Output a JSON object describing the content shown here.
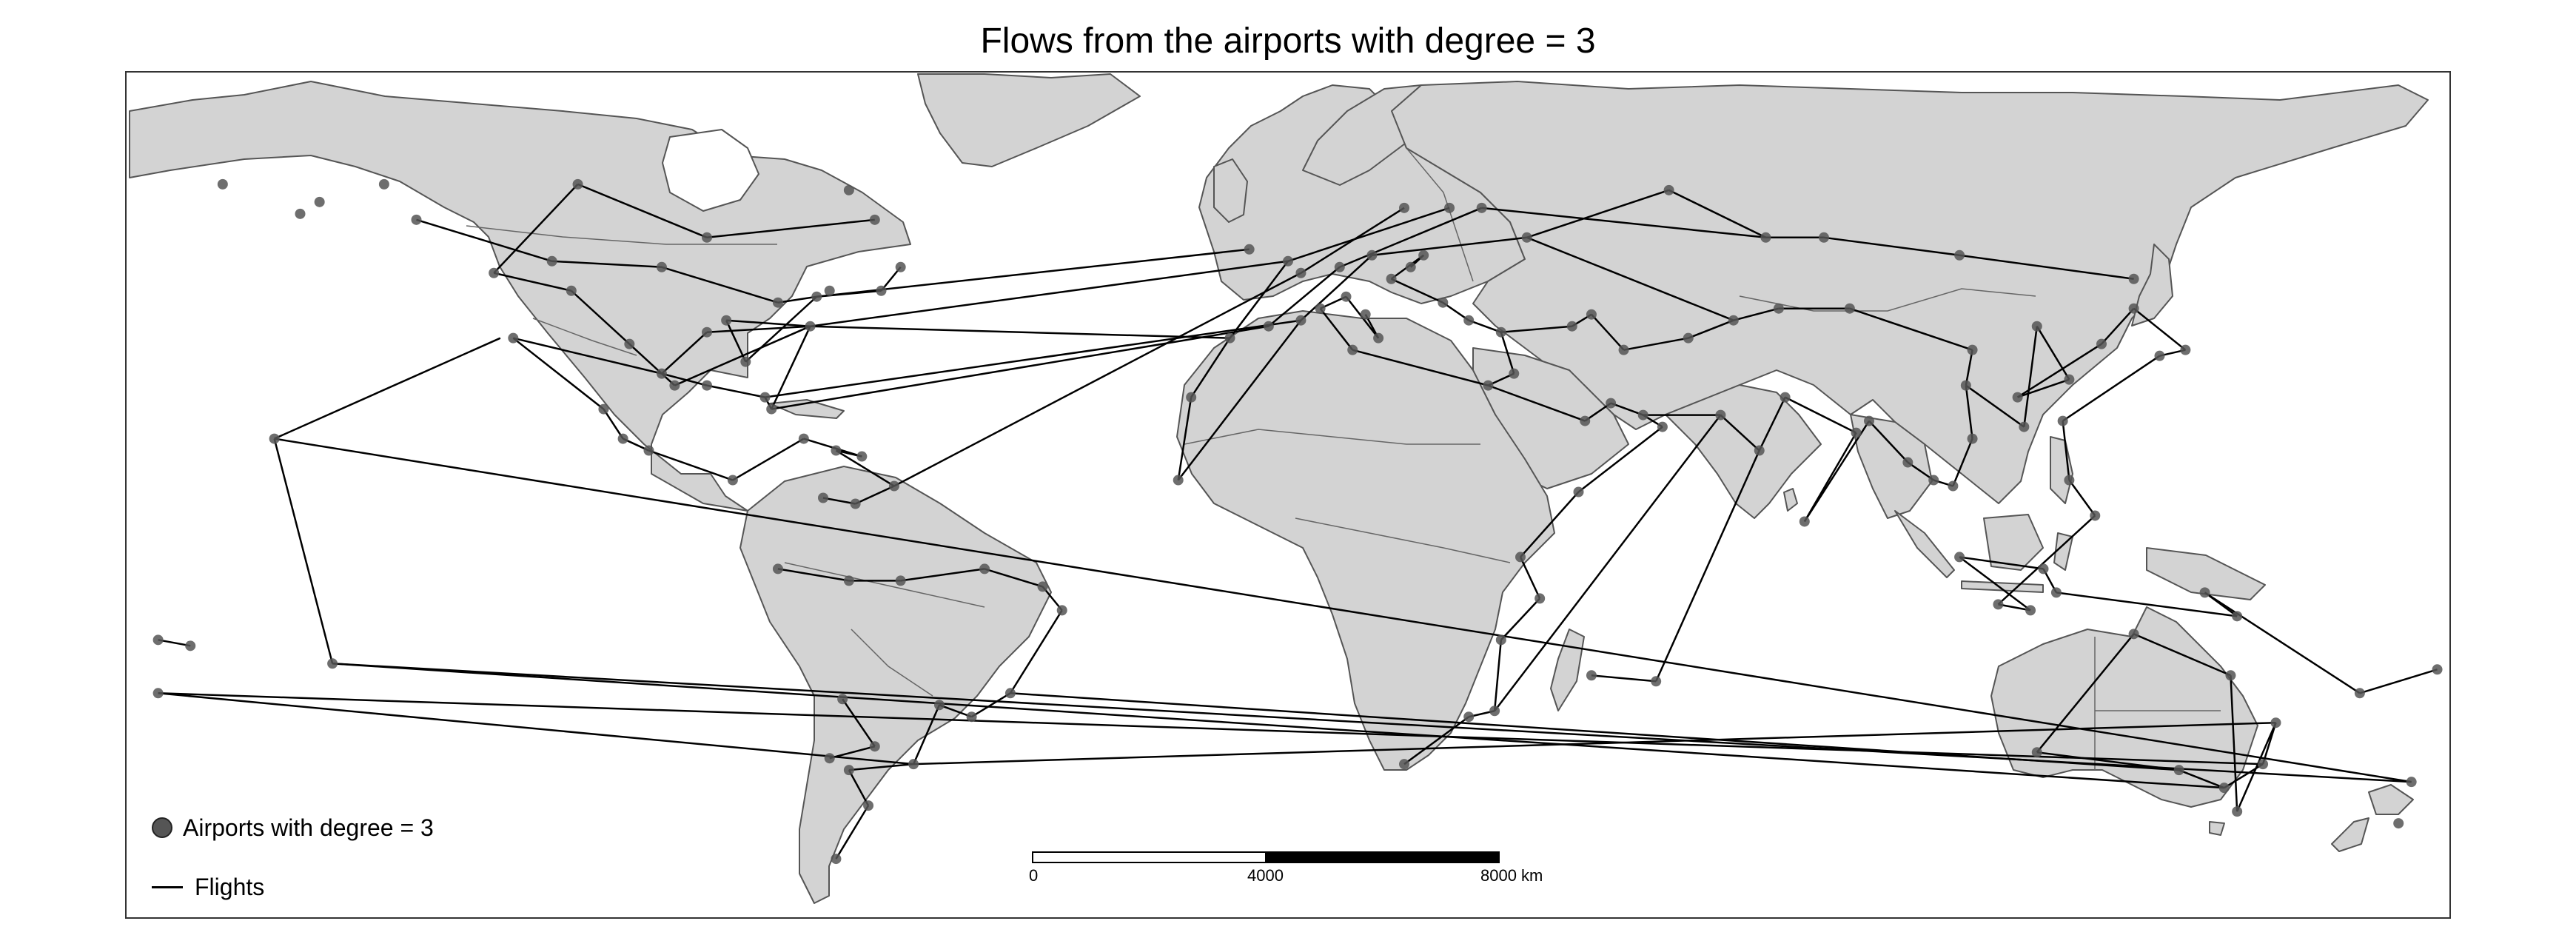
{
  "title": "Flows from the airports with degree = 3",
  "legend": {
    "airports_label": "Airports with degree = 3",
    "flights_label": "Flights"
  },
  "scale_bar": {
    "ticks": [
      "0",
      "4000",
      "8000 km"
    ]
  },
  "colors": {
    "land": "#d3d3d3",
    "border": "#555555",
    "ocean": "#ffffff",
    "airport": "#555555",
    "flight": "#000000"
  },
  "map_data": {
    "airports": [
      [
        -153,
        59
      ],
      [
        -150,
        61
      ],
      [
        -140,
        64
      ],
      [
        -165,
        64
      ],
      [
        -135,
        58
      ],
      [
        -123,
        49
      ],
      [
        -114,
        51
      ],
      [
        -97,
        50
      ],
      [
        -79,
        44
      ],
      [
        -73,
        45
      ],
      [
        -71,
        46
      ],
      [
        -63,
        46
      ],
      [
        -60,
        50
      ],
      [
        -64,
        58
      ],
      [
        -68,
        63
      ],
      [
        -90,
        55
      ],
      [
        -110,
        64
      ],
      [
        -120,
        38
      ],
      [
        -111,
        46
      ],
      [
        -102,
        37
      ],
      [
        -97,
        32
      ],
      [
        -95,
        30
      ],
      [
        -90,
        30
      ],
      [
        -81,
        28
      ],
      [
        -80,
        26
      ],
      [
        -84,
        34
      ],
      [
        -87,
        41
      ],
      [
        -74,
        40
      ],
      [
        -90,
        39
      ],
      [
        -99,
        19
      ],
      [
        -103,
        21
      ],
      [
        -106,
        26
      ],
      [
        -86,
        14
      ],
      [
        -75,
        21
      ],
      [
        -66,
        18
      ],
      [
        -70,
        19
      ],
      [
        -61,
        13
      ],
      [
        -72,
        11
      ],
      [
        -67,
        10
      ],
      [
        -79,
        -1
      ],
      [
        -47,
        -1
      ],
      [
        -38,
        -4
      ],
      [
        -35,
        -8
      ],
      [
        -43,
        -22
      ],
      [
        -49,
        -26
      ],
      [
        -54,
        -24
      ],
      [
        -68,
        -3
      ],
      [
        -60,
        -3
      ],
      [
        -58,
        -34
      ],
      [
        -68,
        -35
      ],
      [
        -65,
        -41
      ],
      [
        -70,
        -50
      ],
      [
        -71,
        -33
      ],
      [
        -64,
        -31
      ],
      [
        -69,
        -23
      ],
      [
        -157,
        21
      ],
      [
        -175,
        -13
      ],
      [
        -148,
        -17
      ],
      [
        -17,
        14
      ],
      [
        -15,
        28
      ],
      [
        -9,
        38
      ],
      [
        -3,
        40
      ],
      [
        2,
        41
      ],
      [
        2,
        49
      ],
      [
        0,
        51
      ],
      [
        -6,
        53
      ],
      [
        8,
        50
      ],
      [
        13,
        52
      ],
      [
        18,
        60
      ],
      [
        25,
        60
      ],
      [
        30,
        60
      ],
      [
        37,
        55
      ],
      [
        19,
        50
      ],
      [
        21,
        52
      ],
      [
        16,
        48
      ],
      [
        24,
        44
      ],
      [
        28,
        41
      ],
      [
        33,
        39
      ],
      [
        35,
        32
      ],
      [
        31,
        30
      ],
      [
        12,
        42
      ],
      [
        14,
        38
      ],
      [
        9,
        45
      ],
      [
        5,
        43
      ],
      [
        10,
        36
      ],
      [
        46,
        24
      ],
      [
        50,
        27
      ],
      [
        55,
        25
      ],
      [
        58,
        23
      ],
      [
        45,
        12
      ],
      [
        36,
        1
      ],
      [
        39,
        -6
      ],
      [
        33,
        -13
      ],
      [
        32,
        -25
      ],
      [
        28,
        -26
      ],
      [
        18,
        -34
      ],
      [
        47,
        -19
      ],
      [
        57,
        -20
      ],
      [
        67,
        25
      ],
      [
        73,
        19
      ],
      [
        77,
        28
      ],
      [
        88,
        22
      ],
      [
        80,
        7
      ],
      [
        90,
        24
      ],
      [
        96,
        17
      ],
      [
        100,
        14
      ],
      [
        103,
        13
      ],
      [
        106,
        21
      ],
      [
        105,
        30
      ],
      [
        114,
        23
      ],
      [
        116,
        40
      ],
      [
        121,
        31
      ],
      [
        113,
        28
      ],
      [
        126,
        37
      ],
      [
        131,
        43
      ],
      [
        139,
        36
      ],
      [
        135,
        35
      ],
      [
        120,
        24
      ],
      [
        121,
        14
      ],
      [
        125,
        8
      ],
      [
        110,
        -7
      ],
      [
        115,
        -8
      ],
      [
        104,
        1
      ],
      [
        117,
        -1
      ],
      [
        119,
        -5
      ],
      [
        147,
        -9
      ],
      [
        142,
        -5
      ],
      [
        166,
        -22
      ],
      [
        178,
        -18
      ],
      [
        106,
        36
      ],
      [
        87,
        43
      ],
      [
        76,
        43
      ],
      [
        69,
        41
      ],
      [
        62,
        38
      ],
      [
        52,
        36
      ],
      [
        47,
        42
      ],
      [
        74,
        55
      ],
      [
        83,
        55
      ],
      [
        104,
        52
      ],
      [
        131,
        48
      ],
      [
        153,
        -27
      ],
      [
        151,
        -34
      ],
      [
        145,
        -38
      ],
      [
        138,
        -35
      ],
      [
        116,
        -32
      ],
      [
        131,
        -12
      ],
      [
        146,
        -19
      ],
      [
        147,
        -42
      ],
      [
        174,
        -37
      ],
      [
        172,
        -44
      ],
      [
        -175,
        -22
      ],
      [
        -170,
        -14
      ],
      [
        44,
        40
      ],
      [
        59,
        63
      ]
    ],
    "flights": [
      [
        -135,
        58,
        -114,
        51
      ],
      [
        -123,
        49,
        -111,
        46
      ],
      [
        -114,
        51,
        -97,
        50
      ],
      [
        -97,
        50,
        -79,
        44
      ],
      [
        -79,
        44,
        -73,
        45
      ],
      [
        -73,
        45,
        -63,
        46
      ],
      [
        -63,
        46,
        -60,
        50
      ],
      [
        -64,
        58,
        -90,
        55
      ],
      [
        -90,
        55,
        -110,
        64
      ],
      [
        -110,
        64,
        -123,
        49
      ],
      [
        -120,
        38,
        -97,
        32
      ],
      [
        -111,
        46,
        -102,
        37
      ],
      [
        -102,
        37,
        -95,
        30
      ],
      [
        -97,
        32,
        -90,
        30
      ],
      [
        -90,
        30,
        -81,
        28
      ],
      [
        -81,
        28,
        -80,
        26
      ],
      [
        -84,
        34,
        -87,
        41
      ],
      [
        -87,
        41,
        -74,
        40
      ],
      [
        -74,
        40,
        -90,
        39
      ],
      [
        -90,
        39,
        -97,
        32
      ],
      [
        -95,
        30,
        -74,
        40
      ],
      [
        -84,
        34,
        -73,
        45
      ],
      [
        -80,
        26,
        -74,
        40
      ],
      [
        -99,
        19,
        -103,
        21
      ],
      [
        -103,
        21,
        -106,
        26
      ],
      [
        -106,
        26,
        -120,
        38
      ],
      [
        -99,
        19,
        -86,
        14
      ],
      [
        -86,
        14,
        -75,
        21
      ],
      [
        -75,
        21,
        -66,
        18
      ],
      [
        -66,
        18,
        -70,
        19
      ],
      [
        -70,
        19,
        -61,
        13
      ],
      [
        -72,
        11,
        -67,
        10
      ],
      [
        -67,
        10,
        -61,
        13
      ],
      [
        -79,
        -1,
        -68,
        -3
      ],
      [
        -68,
        -3,
        -60,
        -3
      ],
      [
        -60,
        -3,
        -47,
        -1
      ],
      [
        -47,
        -1,
        -38,
        -4
      ],
      [
        -38,
        -4,
        -35,
        -8
      ],
      [
        -35,
        -8,
        -43,
        -22
      ],
      [
        -43,
        -22,
        -49,
        -26
      ],
      [
        -49,
        -26,
        -54,
        -24
      ],
      [
        -54,
        -24,
        -58,
        -34
      ],
      [
        -58,
        -34,
        -68,
        -35
      ],
      [
        -68,
        -35,
        -65,
        -41
      ],
      [
        -65,
        -41,
        -70,
        -50
      ],
      [
        -71,
        -33,
        -64,
        -31
      ],
      [
        -64,
        -31,
        -69,
        -23
      ],
      [
        -74,
        40,
        -9,
        38
      ],
      [
        -74,
        40,
        0,
        51
      ],
      [
        -73,
        45,
        -6,
        53
      ],
      [
        -80,
        26,
        -3,
        40
      ],
      [
        -81,
        28,
        2,
        41
      ],
      [
        -61,
        13,
        2,
        49
      ],
      [
        -17,
        14,
        -15,
        28
      ],
      [
        -15,
        28,
        -9,
        38
      ],
      [
        -17,
        14,
        2,
        41
      ],
      [
        -9,
        38,
        0,
        51
      ],
      [
        -3,
        40,
        8,
        50
      ],
      [
        2,
        41,
        13,
        52
      ],
      [
        2,
        49,
        18,
        60
      ],
      [
        0,
        51,
        25,
        60
      ],
      [
        8,
        50,
        30,
        60
      ],
      [
        13,
        52,
        37,
        55
      ],
      [
        19,
        50,
        21,
        52
      ],
      [
        21,
        52,
        16,
        48
      ],
      [
        16,
        48,
        24,
        44
      ],
      [
        24,
        44,
        28,
        41
      ],
      [
        28,
        41,
        33,
        39
      ],
      [
        33,
        39,
        35,
        32
      ],
      [
        35,
        32,
        31,
        30
      ],
      [
        12,
        42,
        14,
        38
      ],
      [
        14,
        38,
        9,
        45
      ],
      [
        9,
        45,
        5,
        43
      ],
      [
        5,
        43,
        10,
        36
      ],
      [
        10,
        36,
        31,
        30
      ],
      [
        31,
        30,
        46,
        24
      ],
      [
        46,
        24,
        50,
        27
      ],
      [
        50,
        27,
        55,
        25
      ],
      [
        55,
        25,
        58,
        23
      ],
      [
        58,
        23,
        45,
        12
      ],
      [
        45,
        12,
        36,
        1
      ],
      [
        36,
        1,
        39,
        -6
      ],
      [
        39,
        -6,
        33,
        -13
      ],
      [
        33,
        -13,
        32,
        -25
      ],
      [
        32,
        -25,
        28,
        -26
      ],
      [
        28,
        -26,
        18,
        -34
      ],
      [
        47,
        -19,
        57,
        -20
      ],
      [
        57,
        -20,
        73,
        19
      ],
      [
        32,
        -25,
        67,
        25
      ],
      [
        55,
        25,
        67,
        25
      ],
      [
        67,
        25,
        73,
        19
      ],
      [
        73,
        19,
        77,
        28
      ],
      [
        77,
        28,
        88,
        22
      ],
      [
        88,
        22,
        80,
        7
      ],
      [
        80,
        7,
        90,
        24
      ],
      [
        90,
        24,
        96,
        17
      ],
      [
        96,
        17,
        100,
        14
      ],
      [
        100,
        14,
        103,
        13
      ],
      [
        103,
        13,
        106,
        21
      ],
      [
        106,
        21,
        105,
        30
      ],
      [
        105,
        30,
        114,
        23
      ],
      [
        114,
        23,
        116,
        40
      ],
      [
        116,
        40,
        121,
        31
      ],
      [
        121,
        31,
        113,
        28
      ],
      [
        113,
        28,
        126,
        37
      ],
      [
        126,
        37,
        131,
        43
      ],
      [
        131,
        43,
        139,
        36
      ],
      [
        139,
        36,
        135,
        35
      ],
      [
        135,
        35,
        120,
        24
      ],
      [
        120,
        24,
        121,
        14
      ],
      [
        121,
        14,
        125,
        8
      ],
      [
        125,
        8,
        110,
        -7
      ],
      [
        110,
        -7,
        115,
        -8
      ],
      [
        115,
        -8,
        104,
        1
      ],
      [
        104,
        1,
        117,
        -1
      ],
      [
        117,
        -1,
        119,
        -5
      ],
      [
        119,
        -5,
        147,
        -9
      ],
      [
        147,
        -9,
        142,
        -5
      ],
      [
        142,
        -5,
        166,
        -22
      ],
      [
        166,
        -22,
        178,
        -18
      ],
      [
        105,
        30,
        106,
        36
      ],
      [
        106,
        36,
        87,
        43
      ],
      [
        87,
        43,
        76,
        43
      ],
      [
        76,
        43,
        69,
        41
      ],
      [
        69,
        41,
        62,
        38
      ],
      [
        62,
        38,
        52,
        36
      ],
      [
        52,
        36,
        47,
        42
      ],
      [
        47,
        42,
        44,
        40
      ],
      [
        44,
        40,
        33,
        39
      ],
      [
        74,
        55,
        83,
        55
      ],
      [
        83,
        55,
        104,
        52
      ],
      [
        104,
        52,
        131,
        48
      ],
      [
        37,
        55,
        59,
        63
      ],
      [
        59,
        63,
        74,
        55
      ],
      [
        30,
        60,
        74,
        55
      ],
      [
        37,
        55,
        69,
        41
      ],
      [
        153,
        -27,
        151,
        -34
      ],
      [
        151,
        -34,
        145,
        -38
      ],
      [
        145,
        -38,
        138,
        -35
      ],
      [
        138,
        -35,
        116,
        -32
      ],
      [
        116,
        -32,
        131,
        -12
      ],
      [
        131,
        -12,
        146,
        -19
      ],
      [
        146,
        -19,
        147,
        -42
      ],
      [
        147,
        -42,
        153,
        -27
      ],
      [
        -175,
        -22,
        -58,
        -34
      ],
      [
        -175,
        -22,
        151,
        -34
      ],
      [
        -157,
        21,
        -122,
        38
      ],
      [
        -157,
        21,
        174,
        -37
      ],
      [
        -148,
        -17,
        174,
        -37
      ],
      [
        -148,
        -17,
        145,
        -38
      ],
      [
        -157,
        21,
        -148,
        -17
      ],
      [
        -175,
        -13,
        -170,
        -14
      ],
      [
        -58,
        -34,
        153,
        -27
      ],
      [
        -43,
        -22,
        138,
        -35
      ]
    ]
  }
}
